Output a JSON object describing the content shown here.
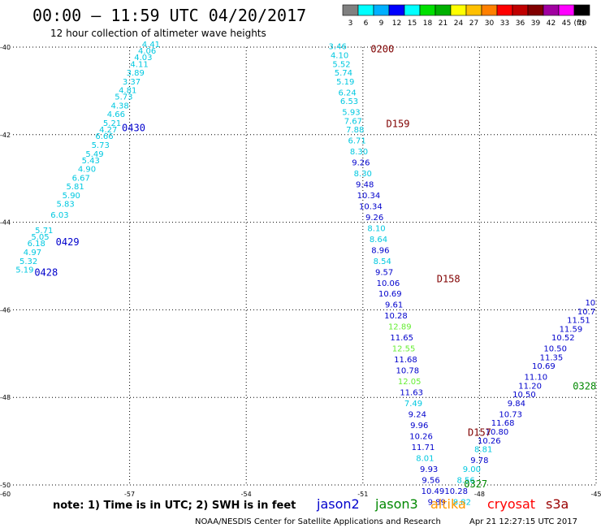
{
  "header": {
    "title": "00:00 – 11:59 UTC 04/20/2017",
    "subtitle": "12 hour collection of altimeter wave heights"
  },
  "colorbar": {
    "labels": [
      "3",
      "6",
      "9",
      "12",
      "15",
      "18",
      "21",
      "24",
      "27",
      "30",
      "33",
      "36",
      "39",
      "42",
      "45",
      "70"
    ],
    "unit": "(ft)",
    "colors": [
      "#808080",
      "#00ffff",
      "#00b0ff",
      "#0000ff",
      "#00ffff",
      "#00e000",
      "#00b000",
      "#ffff00",
      "#ffc000",
      "#ff8000",
      "#ff0000",
      "#c00000",
      "#800000",
      "#a000a0",
      "#ff00ff",
      "#000000"
    ]
  },
  "footer": {
    "note": "note:  1) Time is in UTC;  2) SWH is in feet",
    "credit": "NOAA/NESDIS Center for Satellite Applications and Research",
    "timestamp": "Apr 21 12:27:15 UTC 2017"
  },
  "satellites": [
    {
      "name": "jason2",
      "color": "#0000cc"
    },
    {
      "name": "jason3",
      "color": "#008800"
    },
    {
      "name": "altika",
      "color": "#ff9900"
    },
    {
      "name": "cryosat",
      "color": "#ff0000"
    },
    {
      "name": "s3a",
      "color": "#990000"
    }
  ],
  "chart_data": {
    "type": "scatter",
    "xlim": [
      -60,
      -45
    ],
    "ylim": [
      -50,
      -40
    ],
    "x_ticks": [
      "-57",
      "-54",
      "-51",
      "-48",
      "-45"
    ],
    "y_ticks": [
      "-40",
      "-42",
      "-44",
      "-46",
      "-48",
      "-50"
    ],
    "x_tick_values": [
      -57,
      -54,
      -51,
      -48,
      -45
    ],
    "y_tick_values": [
      -40,
      -42,
      -44,
      -46,
      -48,
      -50
    ],
    "corner_label": "-60",
    "grid": true,
    "pass_labels": [
      {
        "text": "0200",
        "x": -50.8,
        "y": -40.05,
        "color": "#800000"
      },
      {
        "text": "D159",
        "x": -50.4,
        "y": -41.75,
        "color": "#800000"
      },
      {
        "text": "D158",
        "x": -49.1,
        "y": -45.3,
        "color": "#800000"
      },
      {
        "text": "D157",
        "x": -48.3,
        "y": -48.8,
        "color": "#800000"
      },
      {
        "text": "0327",
        "x": -48.4,
        "y": -49.98,
        "color": "#008800"
      },
      {
        "text": "0328",
        "x": -45.6,
        "y": -47.75,
        "color": "#008800"
      },
      {
        "text": "0430",
        "x": -57.2,
        "y": -41.85,
        "color": "#0000cc"
      },
      {
        "text": "0429",
        "x": -58.9,
        "y": -44.45,
        "color": "#0000cc"
      },
      {
        "text": "0428",
        "x": -59.45,
        "y": -45.15,
        "color": "#0000cc"
      }
    ],
    "series": [
      {
        "name": "0428/0429/0430",
        "color": "#00c8e0",
        "points": [
          {
            "x": -59.7,
            "y": -45.15,
            "v": "5.19"
          },
          {
            "x": -59.6,
            "y": -44.95,
            "v": "5.32"
          },
          {
            "x": -59.5,
            "y": -44.75,
            "v": "4.97"
          },
          {
            "x": -59.4,
            "y": -44.55,
            "v": "6.18"
          },
          {
            "x": -59.3,
            "y": -44.4,
            "v": "5.05"
          },
          {
            "x": -59.2,
            "y": -44.25,
            "v": "5.71"
          },
          {
            "x": -58.8,
            "y": -43.9,
            "v": "6.03"
          },
          {
            "x": -58.65,
            "y": -43.65,
            "v": "5.83"
          },
          {
            "x": -58.5,
            "y": -43.45,
            "v": "5.90"
          },
          {
            "x": -58.4,
            "y": -43.25,
            "v": "5.81"
          },
          {
            "x": -58.25,
            "y": -43.05,
            "v": "6.67"
          },
          {
            "x": -58.1,
            "y": -42.85,
            "v": "4.90"
          },
          {
            "x": -58.0,
            "y": -42.65,
            "v": "5.43"
          },
          {
            "x": -57.9,
            "y": -42.5,
            "v": "5.49"
          },
          {
            "x": -57.75,
            "y": -42.3,
            "v": "5.73"
          },
          {
            "x": -57.65,
            "y": -42.1,
            "v": "6.66"
          },
          {
            "x": -57.55,
            "y": -41.95,
            "v": "4.27"
          },
          {
            "x": -57.45,
            "y": -41.8,
            "v": "5.21"
          },
          {
            "x": -57.35,
            "y": -41.6,
            "v": "4.66"
          },
          {
            "x": -57.25,
            "y": -41.4,
            "v": "4.38"
          },
          {
            "x": -57.15,
            "y": -41.2,
            "v": "5.73"
          },
          {
            "x": -57.05,
            "y": -41.05,
            "v": "4.81"
          },
          {
            "x": -56.95,
            "y": -40.85,
            "v": "3.37"
          },
          {
            "x": -56.85,
            "y": -40.65,
            "v": "3.89"
          },
          {
            "x": -56.75,
            "y": -40.45,
            "v": "4.11"
          },
          {
            "x": -56.65,
            "y": -40.3,
            "v": "4.03"
          },
          {
            "x": -56.55,
            "y": -40.15,
            "v": "4.06"
          },
          {
            "x": -56.45,
            "y": -40.0,
            "v": "4.41"
          }
        ]
      },
      {
        "name": "0200/D159/D158/D157",
        "color": "#00c8e0",
        "points": [
          {
            "x": -51.65,
            "y": -40.05,
            "v": "3.46"
          },
          {
            "x": -51.6,
            "y": -40.25,
            "v": "4.10"
          },
          {
            "x": -51.55,
            "y": -40.45,
            "v": "5.52"
          },
          {
            "x": -51.5,
            "y": -40.65,
            "v": "5.74"
          },
          {
            "x": -51.45,
            "y": -40.85,
            "v": "5.19"
          },
          {
            "x": -51.4,
            "y": -41.1,
            "v": "6.24"
          },
          {
            "x": -51.35,
            "y": -41.3,
            "v": "6.53"
          },
          {
            "x": -51.3,
            "y": -41.55,
            "v": "5.93"
          },
          {
            "x": -51.25,
            "y": -41.75,
            "v": "7.67"
          },
          {
            "x": -51.2,
            "y": -41.95,
            "v": "7.88"
          },
          {
            "x": -51.15,
            "y": -42.2,
            "v": "6.71"
          },
          {
            "x": -51.1,
            "y": -42.45,
            "v": "8.30"
          },
          {
            "x": -51.05,
            "y": -42.7,
            "v": "9.26",
            "c": "#0000cc"
          },
          {
            "x": -51.0,
            "y": -42.95,
            "v": "8.30"
          },
          {
            "x": -50.95,
            "y": -43.2,
            "v": "9.48",
            "c": "#0000cc"
          },
          {
            "x": -50.85,
            "y": -43.45,
            "v": "10.34",
            "c": "#0000cc"
          },
          {
            "x": -50.8,
            "y": -43.7,
            "v": "10.34",
            "c": "#0000cc"
          },
          {
            "x": -50.7,
            "y": -43.95,
            "v": "9.26",
            "c": "#0000cc"
          },
          {
            "x": -50.65,
            "y": -44.2,
            "v": "8.10"
          },
          {
            "x": -50.6,
            "y": -44.45,
            "v": "8.64"
          },
          {
            "x": -50.55,
            "y": -44.7,
            "v": "8.96",
            "c": "#0000cc"
          },
          {
            "x": -50.5,
            "y": -44.95,
            "v": "8.54"
          },
          {
            "x": -50.45,
            "y": -45.2,
            "v": "9.57",
            "c": "#0000cc"
          },
          {
            "x": -50.35,
            "y": -45.45,
            "v": "10.06",
            "c": "#0000cc"
          },
          {
            "x": -50.3,
            "y": -45.7,
            "v": "10.69",
            "c": "#0000cc"
          },
          {
            "x": -50.2,
            "y": -45.95,
            "v": "9.61",
            "c": "#0000cc"
          },
          {
            "x": -50.15,
            "y": -46.2,
            "v": "10.28",
            "c": "#0000cc"
          },
          {
            "x": -50.05,
            "y": -46.45,
            "v": "12.89",
            "c": "#66ee33"
          },
          {
            "x": -50.0,
            "y": -46.7,
            "v": "11.65",
            "c": "#0000cc"
          },
          {
            "x": -49.95,
            "y": -46.95,
            "v": "12.55",
            "c": "#66ee33"
          },
          {
            "x": -49.9,
            "y": -47.2,
            "v": "11.68",
            "c": "#0000cc"
          },
          {
            "x": -49.85,
            "y": -47.45,
            "v": "10.78",
            "c": "#0000cc"
          },
          {
            "x": -49.8,
            "y": -47.7,
            "v": "12.05",
            "c": "#66ee33"
          },
          {
            "x": -49.75,
            "y": -47.95,
            "v": "11.63",
            "c": "#0000cc"
          },
          {
            "x": -49.7,
            "y": -48.2,
            "v": "7.49"
          },
          {
            "x": -49.6,
            "y": -48.45,
            "v": "9.24",
            "c": "#0000cc"
          },
          {
            "x": -49.55,
            "y": -48.7,
            "v": "9.96",
            "c": "#0000cc"
          },
          {
            "x": -49.5,
            "y": -48.95,
            "v": "10.26",
            "c": "#0000cc"
          },
          {
            "x": -49.45,
            "y": -49.2,
            "v": "11.71",
            "c": "#0000cc"
          },
          {
            "x": -49.4,
            "y": -49.45,
            "v": "8.01"
          },
          {
            "x": -49.3,
            "y": -49.7,
            "v": "9.93",
            "c": "#0000cc"
          },
          {
            "x": -49.25,
            "y": -49.95,
            "v": "9.56",
            "c": "#0000cc"
          },
          {
            "x": -49.2,
            "y": -50.2,
            "v": "10.49",
            "c": "#0000cc"
          },
          {
            "x": -49.1,
            "y": -50.45,
            "v": "9.89",
            "c": "#0000cc"
          },
          {
            "x": -49.05,
            "y": -50.65,
            "v": "8.66"
          }
        ]
      },
      {
        "name": "0327/0328",
        "color": "#0000cc",
        "points": [
          {
            "x": -48.6,
            "y": -50.65,
            "v": "8.59"
          },
          {
            "x": -48.45,
            "y": -50.45,
            "v": "8.82",
            "c": "#00c8e0"
          },
          {
            "x": -48.6,
            "y": -50.2,
            "v": "10.28"
          },
          {
            "x": -48.35,
            "y": -49.95,
            "v": "8.56",
            "c": "#00c8e0"
          },
          {
            "x": -48.2,
            "y": -49.7,
            "v": "9.00",
            "c": "#00c8e0"
          },
          {
            "x": -48.0,
            "y": -49.5,
            "v": "9.78"
          },
          {
            "x": -47.9,
            "y": -49.25,
            "v": "8.81",
            "c": "#00c8e0"
          },
          {
            "x": -47.75,
            "y": -49.05,
            "v": "10.26"
          },
          {
            "x": -47.55,
            "y": -48.85,
            "v": "10.80"
          },
          {
            "x": -47.4,
            "y": -48.65,
            "v": "11.68"
          },
          {
            "x": -47.2,
            "y": -48.45,
            "v": "10.73"
          },
          {
            "x": -47.05,
            "y": -48.2,
            "v": "9.84"
          },
          {
            "x": -46.85,
            "y": -48.0,
            "v": "10.50"
          },
          {
            "x": -46.7,
            "y": -47.8,
            "v": "11.20"
          },
          {
            "x": -46.55,
            "y": -47.6,
            "v": "11.10"
          },
          {
            "x": -46.35,
            "y": -47.35,
            "v": "10.69"
          },
          {
            "x": -46.15,
            "y": -47.15,
            "v": "11.35"
          },
          {
            "x": -46.05,
            "y": -46.95,
            "v": "10.50"
          },
          {
            "x": -45.85,
            "y": -46.7,
            "v": "10.52"
          },
          {
            "x": -45.65,
            "y": -46.5,
            "v": "11.59"
          },
          {
            "x": -45.45,
            "y": -46.3,
            "v": "11.51"
          },
          {
            "x": -45.25,
            "y": -46.1,
            "v": "10.7"
          },
          {
            "x": -45.15,
            "y": -45.9,
            "v": "10"
          }
        ]
      }
    ]
  }
}
